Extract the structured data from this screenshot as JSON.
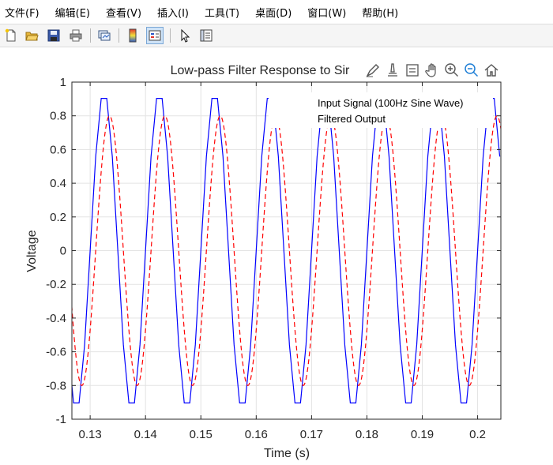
{
  "menu": {
    "items": [
      "文件(F)",
      "编辑(E)",
      "查看(V)",
      "插入(I)",
      "工具(T)",
      "桌面(D)",
      "窗口(W)",
      "帮助(H)"
    ]
  },
  "toolbar": {
    "icons": [
      "new-figure-icon",
      "open-file-icon",
      "save-icon",
      "print-icon",
      "link-plot-icon",
      "insert-colorbar-icon",
      "insert-legend-icon",
      "edit-plot-icon",
      "property-inspector-icon"
    ]
  },
  "axes_toolbar": {
    "icons": [
      "brush-icon",
      "data-tips-icon",
      "export-icon",
      "pan-icon",
      "zoom-in-icon",
      "zoom-out-icon",
      "home-icon"
    ]
  },
  "colors": {
    "input": "#0000ff",
    "output": "#ff0000"
  },
  "chart_data": {
    "type": "line",
    "title": "Low-pass Filter Response to Sir",
    "xlabel": "Time (s)",
    "ylabel": "Voltage",
    "xlim": [
      0.1267,
      0.2042
    ],
    "ylim": [
      -1,
      1
    ],
    "xticks": [
      "0.13",
      "0.14",
      "0.15",
      "0.16",
      "0.17",
      "0.18",
      "0.19",
      "0.2"
    ],
    "yticks": [
      "-1",
      "-0.8",
      "-0.6",
      "-0.4",
      "-0.2",
      "0",
      "0.2",
      "0.4",
      "0.6",
      "0.8",
      "1"
    ],
    "grid": true,
    "legend_position": "top-right",
    "series": [
      {
        "name": "Input Signal (100Hz Sine Wave)",
        "style": "solid",
        "color": "#0000ff",
        "frequency_hz": 100,
        "amplitude": 0.95,
        "sample_interval_s": 0.001,
        "peak_times": [
          0.1325,
          0.1425,
          0.1525,
          0.1625,
          0.1725,
          0.1825,
          0.1925,
          0.2025
        ]
      },
      {
        "name": "Filtered Output",
        "style": "dashed",
        "color": "#ff0000",
        "frequency_hz": 100,
        "amplitude": 0.8,
        "peak_times": [
          0.1335,
          0.1435,
          0.1535,
          0.1635,
          0.1735,
          0.1835,
          0.1935,
          0.2035
        ]
      }
    ]
  }
}
